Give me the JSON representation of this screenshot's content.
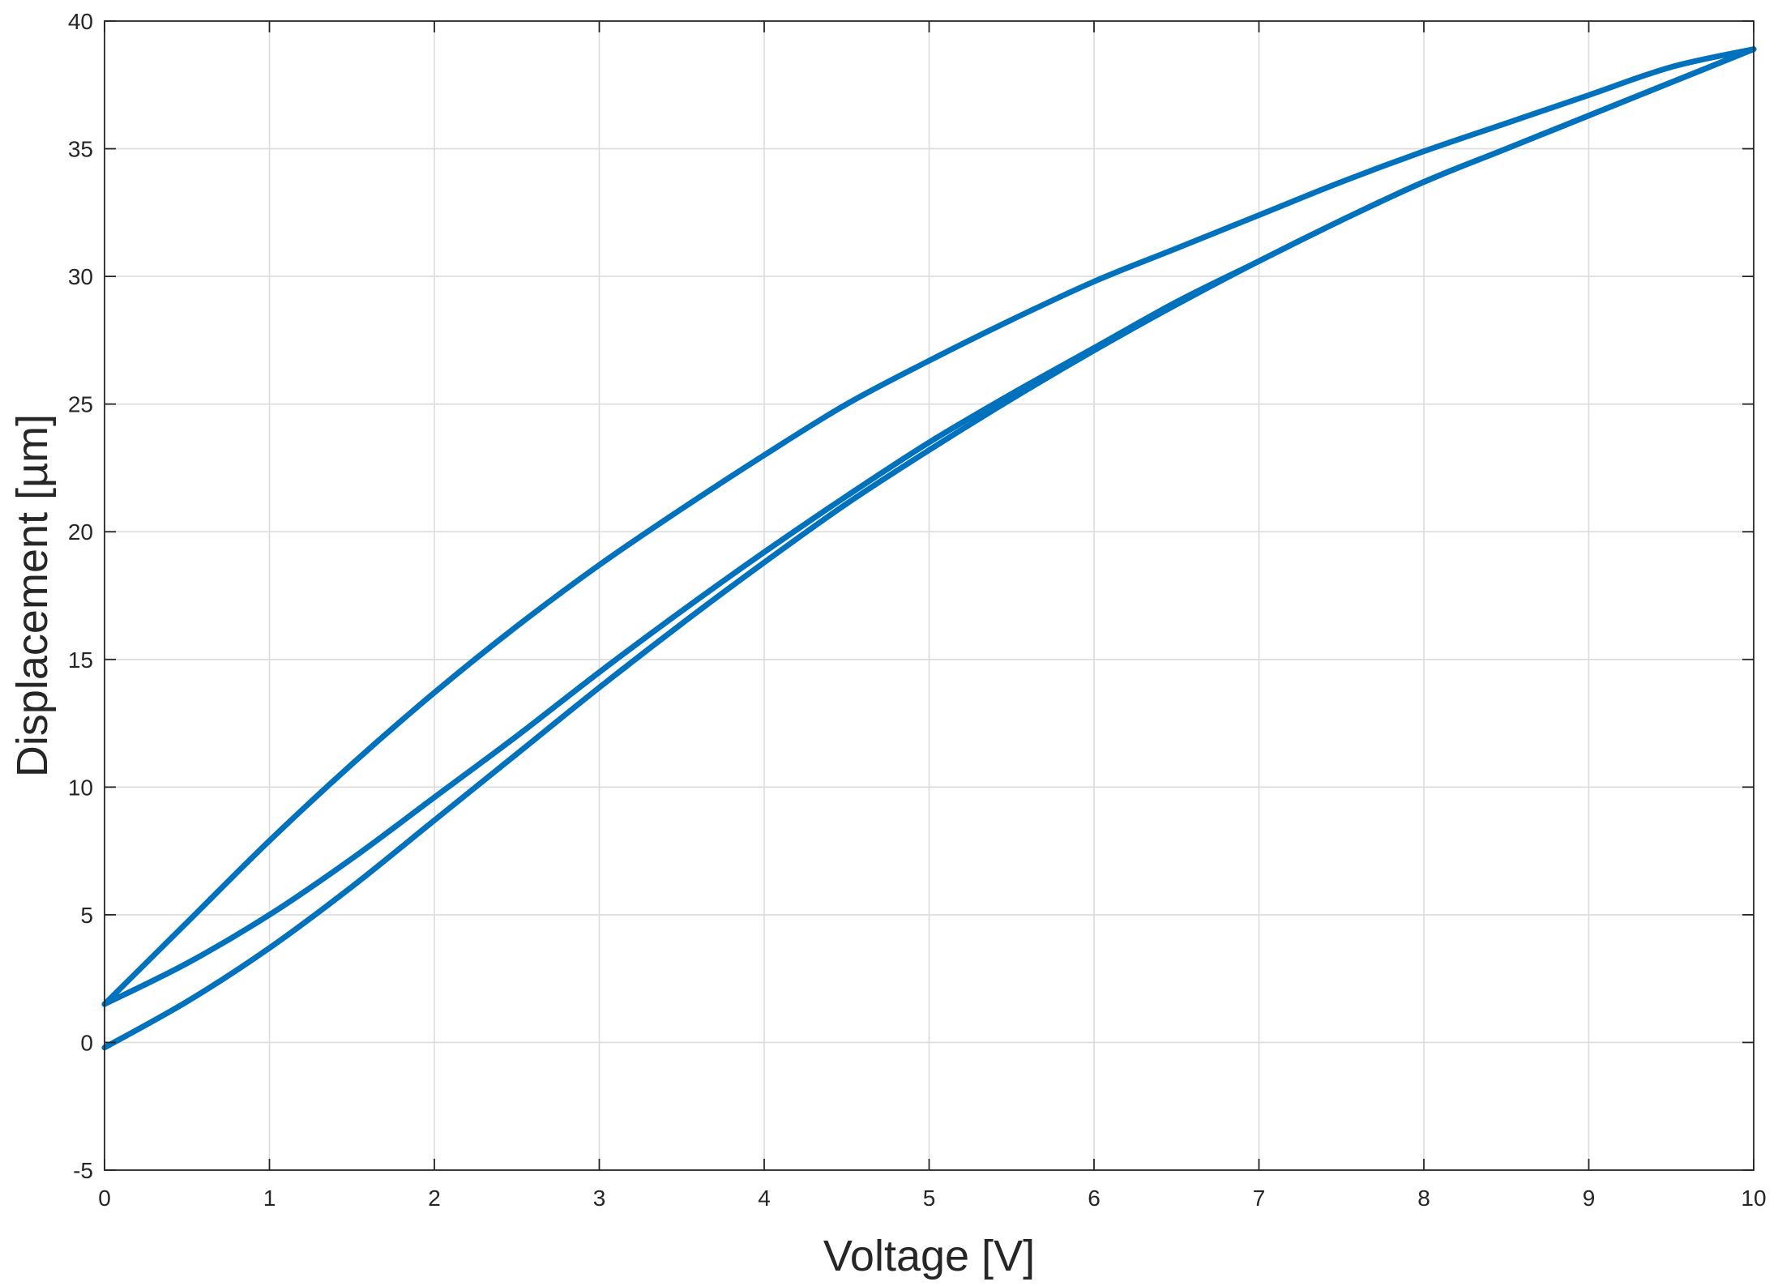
{
  "chart_data": {
    "type": "line",
    "title": "",
    "xlabel": "Voltage [V]",
    "ylabel": "Displacement [µm]",
    "xlim": [
      0,
      10
    ],
    "ylim": [
      -5,
      40
    ],
    "xticks": [
      0,
      1,
      2,
      3,
      4,
      5,
      6,
      7,
      8,
      9,
      10
    ],
    "yticks": [
      -5,
      0,
      5,
      10,
      15,
      20,
      25,
      30,
      35,
      40
    ],
    "grid": true,
    "legend": "none",
    "line_color": "#0072BD",
    "series": [
      {
        "x": [
          0,
          0.5,
          1,
          1.5,
          2,
          2.5,
          3,
          3.5,
          4,
          4.5,
          5,
          5.5,
          6,
          6.5,
          7,
          7.5,
          8,
          8.5,
          9,
          9.5,
          10
        ],
        "y": [
          -0.2,
          1.6,
          3.7,
          6.1,
          8.7,
          11.3,
          13.9,
          16.4,
          18.8,
          21.1,
          23.2,
          25.2,
          27.1,
          28.9,
          30.6,
          32.2,
          33.7,
          35.0,
          36.3,
          37.6,
          38.9
        ]
      },
      {
        "x": [
          10,
          9.5,
          9,
          8.5,
          8,
          7.5,
          7,
          6.5,
          6,
          5.5,
          5,
          4.5,
          4,
          3.5,
          3,
          2.5,
          2,
          1.5,
          1,
          0.5,
          0
        ],
        "y": [
          38.9,
          38.2,
          37.1,
          36.0,
          34.9,
          33.7,
          32.4,
          31.1,
          29.8,
          28.3,
          26.7,
          25.0,
          23.0,
          20.9,
          18.7,
          16.3,
          13.7,
          10.9,
          7.9,
          4.7,
          1.5
        ]
      },
      {
        "x": [
          0,
          0.5,
          1,
          1.5,
          2,
          2.5,
          3,
          3.5,
          4,
          4.5,
          5,
          5.5,
          6,
          6.5,
          7,
          7.5,
          8,
          8.5,
          9,
          9.5,
          10
        ],
        "y": [
          1.5,
          3.1,
          5.0,
          7.2,
          9.6,
          12.0,
          14.5,
          16.9,
          19.2,
          21.4,
          23.5,
          25.4,
          27.2,
          29.0,
          30.6,
          32.2,
          33.7,
          35.0,
          36.3,
          37.6,
          38.9
        ]
      }
    ]
  }
}
